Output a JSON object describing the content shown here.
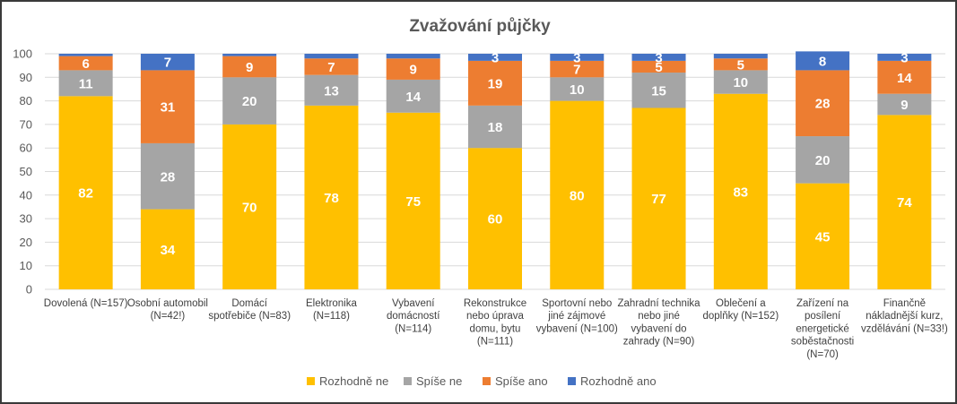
{
  "chart_data": {
    "type": "bar",
    "stacked": true,
    "title": "Zvažování půjčky",
    "xlabel": "",
    "ylabel": "",
    "ylim": [
      0,
      100
    ],
    "yticks": [
      0,
      10,
      20,
      30,
      40,
      50,
      60,
      70,
      80,
      90,
      100
    ],
    "grid": true,
    "legend_position": "bottom",
    "categories": [
      [
        "Dovolená (N=157)"
      ],
      [
        "Osobní automobil",
        "(N=42!)"
      ],
      [
        "Domácí",
        "spotřebiče (N=83)"
      ],
      [
        "Elektronika",
        "(N=118)"
      ],
      [
        "Vybavení",
        "domácností",
        "(N=114)"
      ],
      [
        "Rekonstrukce",
        "nebo úprava",
        "domu, bytu",
        "(N=111)"
      ],
      [
        "Sportovní nebo",
        "jiné zájmové",
        "vybavení (N=100)"
      ],
      [
        "Zahradní technika",
        "nebo jiné",
        "vybavení do",
        "zahrady (N=90)"
      ],
      [
        "Oblečení a",
        "doplňky (N=152)"
      ],
      [
        "Zařízení na",
        "posílení",
        "energetické",
        "soběstačnosti",
        "(N=70)"
      ],
      [
        "Finančně",
        "nákladnější kurz,",
        "vzdělávání (N=33!)"
      ]
    ],
    "series": [
      {
        "name": "Rozhodně ne",
        "color": "#ffc000",
        "values": [
          82,
          34,
          70,
          78,
          75,
          60,
          80,
          77,
          83,
          45,
          74
        ],
        "labels": [
          "82",
          "34",
          "70",
          "78",
          "75",
          "60",
          "80",
          "77",
          "83",
          "45",
          "74"
        ]
      },
      {
        "name": "Spíše ne",
        "color": "#a5a5a5",
        "values": [
          11,
          28,
          20,
          13,
          14,
          18,
          10,
          15,
          10,
          20,
          9
        ],
        "labels": [
          "11",
          "28",
          "20",
          "13",
          "14",
          "18",
          "10",
          "15",
          "10",
          "20",
          "9"
        ]
      },
      {
        "name": "Spíše ano",
        "color": "#ed7d31",
        "values": [
          6,
          31,
          9,
          7,
          9,
          19,
          7,
          5,
          5,
          28,
          14
        ],
        "labels": [
          "6",
          "31",
          "9",
          "7",
          "9",
          "19",
          "7",
          "5",
          "5",
          "28",
          "14"
        ]
      },
      {
        "name": "Rozhodně ano",
        "color": "#4472c4",
        "values": [
          1,
          7,
          1,
          2,
          2,
          3,
          3,
          3,
          2,
          8,
          3
        ],
        "labels": [
          "",
          "7",
          "",
          "",
          "",
          "3",
          "3",
          "3",
          "",
          "8",
          "3"
        ]
      }
    ]
  }
}
